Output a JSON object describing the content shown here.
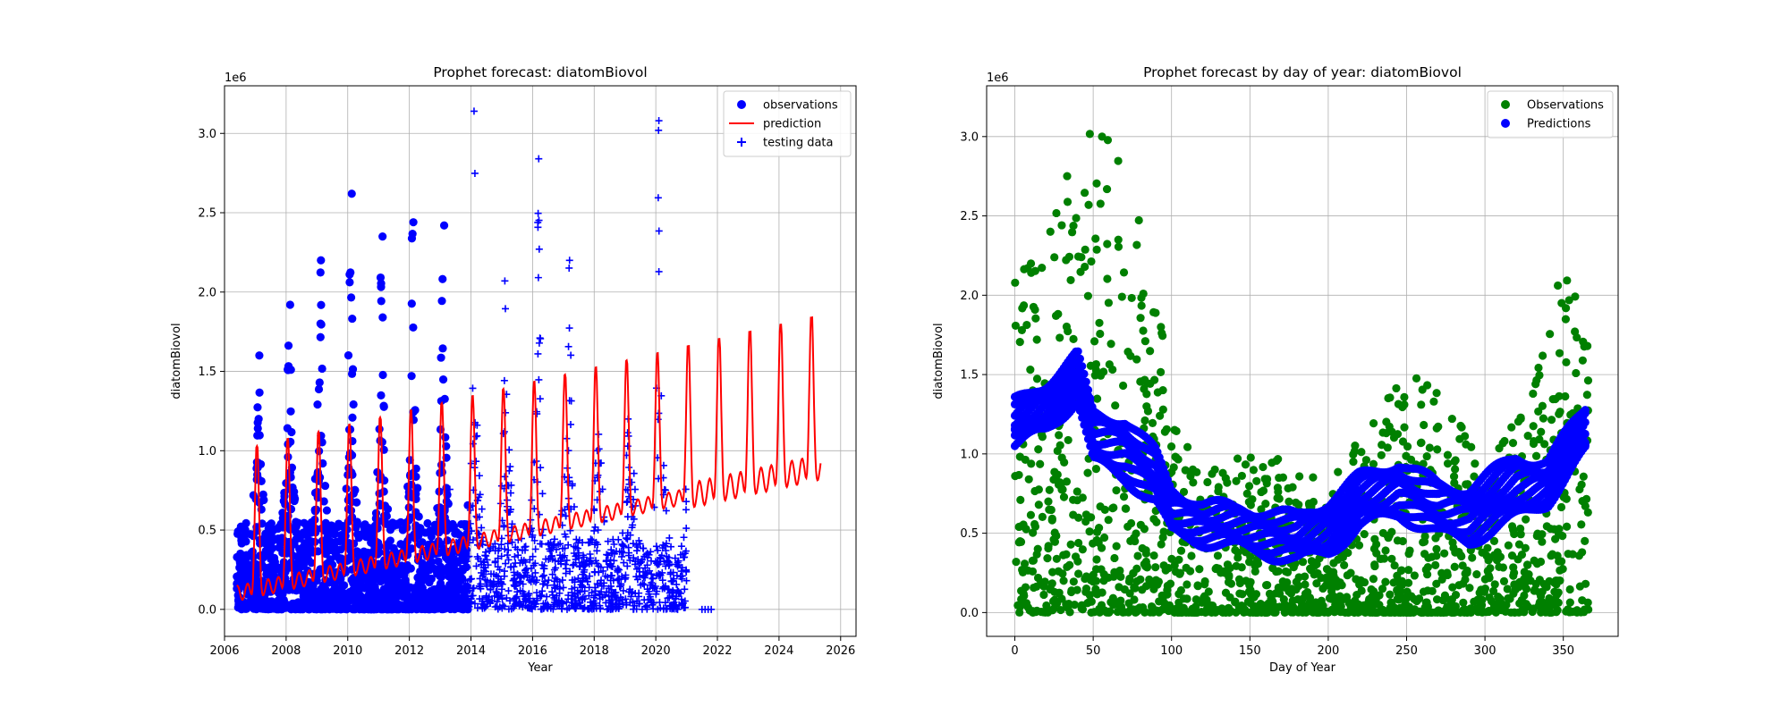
{
  "colors": {
    "observations": "#0000ff",
    "prediction": "#ff0000",
    "testing": "#0000ff",
    "doy_observations": "#008000",
    "doy_predictions": "#0000ff",
    "grid": "#b0b0b0"
  },
  "chart_data": [
    {
      "type": "scatter",
      "title": "Prophet forecast: diatomBiovol",
      "xlabel": "Year",
      "ylabel": "diatomBiovol",
      "y_offset_label": "1e6",
      "xlim": [
        2006.0,
        2026.5
      ],
      "ylim": [
        -0.17,
        3.3
      ],
      "xticks": [
        2006,
        2008,
        2010,
        2012,
        2014,
        2016,
        2018,
        2020,
        2022,
        2024,
        2026
      ],
      "xtick_labels": [
        "2006",
        "2008",
        "2010",
        "2012",
        "2014",
        "2016",
        "2018",
        "2020",
        "2022",
        "2024",
        "2026"
      ],
      "yticks": [
        0.0,
        0.5,
        1.0,
        1.5,
        2.0,
        2.5,
        3.0
      ],
      "ytick_labels": [
        "0.0",
        "0.5",
        "1.0",
        "1.5",
        "2.0",
        "2.5",
        "3.0"
      ],
      "grid": true,
      "legend_position": "upper right",
      "series": [
        {
          "name": "observations",
          "marker": "circle",
          "note_generated": false,
          "years": [
            2006.5,
            2007.1,
            2008.1,
            2009.1,
            2010.1,
            2011.1,
            2012.1,
            2013.1
          ],
          "peaks": [
            0.2,
            1.6,
            1.92,
            2.2,
            2.62,
            2.35,
            2.44,
            2.42
          ],
          "range": [
            2006.4,
            2013.9
          ]
        },
        {
          "name": "prediction",
          "marker": "line",
          "x": [
            2006.4,
            2006.6,
            2007.0,
            2007.2,
            2007.5,
            2008.0,
            2008.2,
            2008.5,
            2009.0,
            2009.2,
            2009.5,
            2010.0,
            2010.2,
            2010.5,
            2011.0,
            2011.2,
            2011.5,
            2012.0,
            2012.2,
            2012.5,
            2013.0,
            2013.2,
            2013.5,
            2014.0,
            2014.2,
            2014.5,
            2015.0,
            2015.2,
            2015.5,
            2016.0,
            2016.2,
            2016.5,
            2017.0,
            2017.2,
            2017.5,
            2018.0,
            2018.2,
            2018.5,
            2019.0,
            2019.2,
            2019.5,
            2020.0,
            2020.2,
            2020.5,
            2021.0,
            2021.2,
            2021.5,
            2022.0,
            2022.2,
            2022.5,
            2023.0,
            2023.2,
            2023.5,
            2024.0,
            2024.2,
            2024.5,
            2025.0,
            2025.2,
            2025.35
          ],
          "y": [
            0.0,
            0.05,
            0.95,
            0.35,
            0.1,
            1.0,
            0.4,
            0.15,
            1.05,
            0.45,
            0.2,
            1.12,
            0.5,
            0.2,
            1.18,
            0.55,
            0.28,
            1.25,
            0.6,
            0.3,
            1.3,
            0.65,
            0.33,
            1.35,
            0.7,
            0.4,
            1.4,
            0.75,
            0.45,
            1.45,
            0.8,
            0.5,
            1.5,
            0.85,
            0.55,
            1.55,
            0.9,
            0.58,
            1.6,
            0.95,
            0.62,
            1.62,
            1.0,
            0.68,
            1.65,
            1.05,
            0.7,
            1.72,
            1.1,
            0.75,
            1.78,
            1.15,
            0.8,
            1.82,
            1.2,
            0.85,
            1.86,
            1.25,
            0.88
          ]
        },
        {
          "name": "testing data",
          "marker": "plus",
          "peaks_at": [
            2014.1,
            2015.1,
            2016.2,
            2017.2,
            2018.1,
            2019.1,
            2020.1
          ],
          "peaks": [
            3.14,
            2.07,
            2.84,
            2.2,
            1.0,
            1.2,
            3.08
          ],
          "range": [
            2013.3,
            2021.8
          ]
        }
      ]
    },
    {
      "type": "scatter",
      "title": "Prophet forecast by day of year: diatomBiovol",
      "xlabel": "Day of Year",
      "ylabel": "diatomBiovol",
      "y_offset_label": "1e6",
      "xlim": [
        -18,
        385
      ],
      "ylim": [
        -0.15,
        3.32
      ],
      "xticks": [
        0,
        50,
        100,
        150,
        200,
        250,
        300,
        350
      ],
      "xtick_labels": [
        "0",
        "50",
        "100",
        "150",
        "200",
        "250",
        "300",
        "350"
      ],
      "yticks": [
        0.0,
        0.5,
        1.0,
        1.5,
        2.0,
        2.5,
        3.0
      ],
      "ytick_labels": [
        "0.0",
        "0.5",
        "1.0",
        "1.5",
        "2.0",
        "2.5",
        "3.0"
      ],
      "grid": true,
      "legend_position": "upper right",
      "series": [
        {
          "name": "Observations",
          "marker": "circle",
          "envelope_doy": [
            0,
            20,
            40,
            50,
            70,
            90,
            100,
            120,
            150,
            200,
            250,
            280,
            300,
            330,
            350,
            365
          ],
          "envelope_max": [
            2.1,
            2.4,
            3.0,
            3.14,
            2.8,
            2.2,
            1.2,
            0.9,
            1.1,
            0.8,
            1.55,
            1.3,
            0.9,
            1.4,
            2.3,
            1.75
          ]
        },
        {
          "name": "Predictions",
          "marker": "circle",
          "doy": [
            0,
            20,
            40,
            50,
            70,
            90,
            100,
            120,
            150,
            180,
            200,
            220,
            245,
            270,
            290,
            320,
            340,
            365
          ],
          "upper": [
            1.32,
            1.45,
            1.62,
            1.25,
            1.22,
            1.0,
            0.78,
            0.68,
            0.65,
            0.6,
            0.7,
            0.85,
            0.95,
            0.8,
            0.78,
            0.98,
            0.95,
            1.3
          ],
          "lower": [
            1.05,
            1.15,
            1.35,
            0.95,
            0.85,
            0.7,
            0.5,
            0.45,
            0.4,
            0.33,
            0.38,
            0.55,
            0.62,
            0.5,
            0.45,
            0.6,
            0.7,
            1.02
          ]
        }
      ]
    }
  ]
}
